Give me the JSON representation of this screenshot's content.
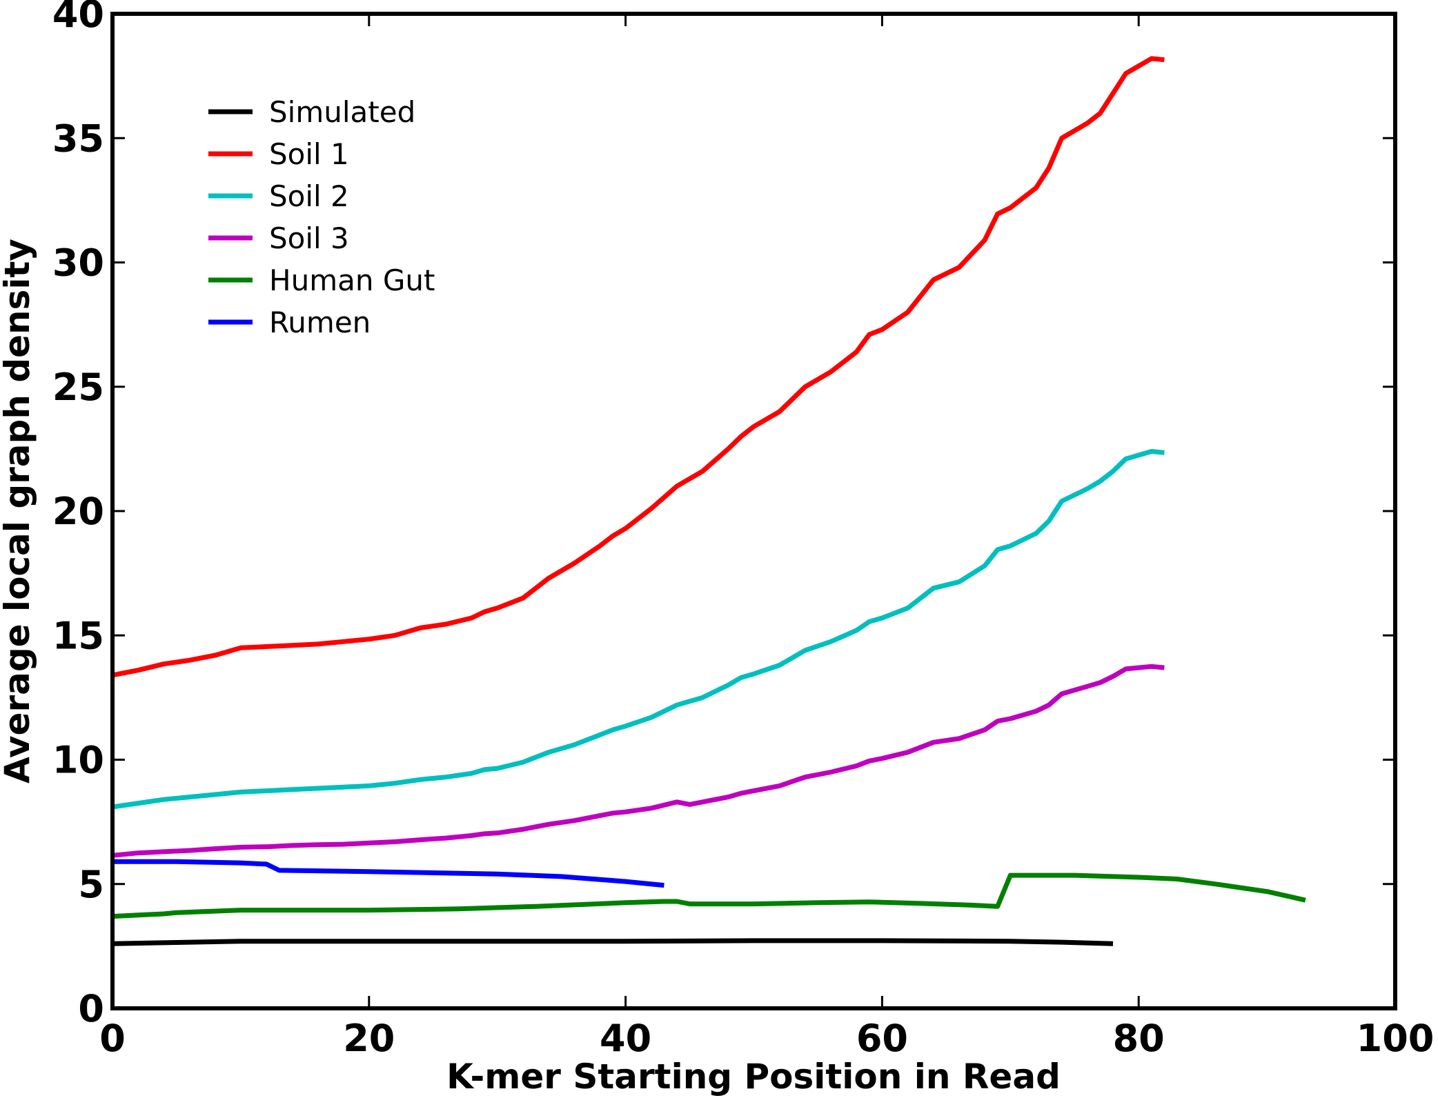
{
  "chart_data": {
    "type": "line",
    "title": "",
    "xlabel": "K-mer Starting Position in Read",
    "ylabel": "Average local graph density",
    "xlim": [
      0,
      100
    ],
    "ylim": [
      0,
      40
    ],
    "xticks": [
      "0",
      "20",
      "40",
      "60",
      "80",
      "100"
    ],
    "yticks": [
      "0",
      "5",
      "10",
      "15",
      "20",
      "25",
      "30",
      "35",
      "40"
    ],
    "legend_position": "top-left",
    "grid": false,
    "series": [
      {
        "name": "Simulated",
        "color": "#000000",
        "x": [
          0,
          5,
          10,
          20,
          30,
          40,
          50,
          60,
          70,
          74,
          78
        ],
        "y": [
          2.6,
          2.65,
          2.7,
          2.7,
          2.7,
          2.7,
          2.72,
          2.72,
          2.7,
          2.66,
          2.6
        ]
      },
      {
        "name": "Soil 1",
        "color": "#ff0000",
        "x": [
          0,
          2,
          4,
          6,
          8,
          10,
          12,
          14,
          16,
          18,
          20,
          22,
          24,
          26,
          28,
          29,
          30,
          32,
          34,
          36,
          38,
          39,
          40,
          42,
          44,
          46,
          48,
          49,
          50,
          52,
          54,
          56,
          58,
          59,
          60,
          62,
          64,
          66,
          68,
          69,
          70,
          72,
          73,
          74,
          76,
          77,
          78,
          79,
          80,
          81,
          82
        ],
        "y": [
          13.4,
          13.6,
          13.85,
          14.0,
          14.2,
          14.5,
          14.55,
          14.6,
          14.65,
          14.75,
          14.85,
          15.0,
          15.3,
          15.45,
          15.7,
          15.95,
          16.1,
          16.5,
          17.3,
          17.9,
          18.6,
          19.0,
          19.3,
          20.1,
          21.0,
          21.6,
          22.5,
          23.0,
          23.4,
          24.0,
          25.0,
          25.6,
          26.4,
          27.1,
          27.3,
          28.0,
          29.3,
          29.8,
          30.9,
          31.95,
          32.2,
          33.0,
          33.8,
          35.0,
          35.6,
          36.0,
          36.8,
          37.6,
          37.9,
          38.2,
          38.15
        ]
      },
      {
        "name": "Soil 2",
        "color": "#00bfbf",
        "x": [
          0,
          2,
          4,
          6,
          8,
          10,
          12,
          14,
          16,
          18,
          20,
          22,
          24,
          26,
          28,
          29,
          30,
          32,
          34,
          36,
          38,
          39,
          40,
          42,
          44,
          46,
          48,
          49,
          50,
          52,
          54,
          56,
          58,
          59,
          60,
          62,
          64,
          66,
          68,
          69,
          70,
          72,
          73,
          74,
          76,
          77,
          78,
          79,
          80,
          81,
          82
        ],
        "y": [
          8.1,
          8.25,
          8.4,
          8.5,
          8.6,
          8.7,
          8.75,
          8.8,
          8.85,
          8.9,
          8.95,
          9.05,
          9.2,
          9.3,
          9.45,
          9.6,
          9.65,
          9.9,
          10.3,
          10.6,
          11.0,
          11.2,
          11.35,
          11.7,
          12.2,
          12.5,
          13.0,
          13.3,
          13.45,
          13.8,
          14.4,
          14.75,
          15.2,
          15.55,
          15.7,
          16.1,
          16.9,
          17.15,
          17.8,
          18.45,
          18.6,
          19.1,
          19.6,
          20.4,
          20.9,
          21.2,
          21.6,
          22.1,
          22.25,
          22.4,
          22.35
        ]
      },
      {
        "name": "Soil 3",
        "color": "#bf00bf",
        "x": [
          0,
          2,
          4,
          6,
          8,
          10,
          12,
          14,
          16,
          18,
          20,
          22,
          24,
          26,
          28,
          29,
          30,
          32,
          34,
          36,
          38,
          39,
          40,
          42,
          44,
          45,
          46,
          48,
          49,
          50,
          52,
          54,
          56,
          58,
          59,
          60,
          62,
          64,
          66,
          68,
          69,
          70,
          72,
          73,
          74,
          76,
          77,
          78,
          79,
          80,
          81,
          82
        ],
        "y": [
          6.15,
          6.25,
          6.3,
          6.35,
          6.42,
          6.48,
          6.5,
          6.55,
          6.58,
          6.6,
          6.65,
          6.7,
          6.78,
          6.85,
          6.95,
          7.02,
          7.05,
          7.2,
          7.4,
          7.55,
          7.75,
          7.85,
          7.9,
          8.05,
          8.3,
          8.2,
          8.3,
          8.5,
          8.65,
          8.75,
          8.95,
          9.3,
          9.5,
          9.75,
          9.95,
          10.05,
          10.3,
          10.7,
          10.85,
          11.2,
          11.55,
          11.65,
          11.95,
          12.2,
          12.65,
          12.95,
          13.1,
          13.35,
          13.65,
          13.7,
          13.75,
          13.7
        ]
      },
      {
        "name": "Human Gut",
        "color": "#008000",
        "x": [
          0,
          2,
          4,
          5,
          10,
          20,
          27,
          33,
          40,
          43,
          44,
          45,
          50,
          55,
          59,
          63,
          67,
          69,
          70,
          75,
          80,
          83,
          86,
          90,
          93
        ],
        "y": [
          3.7,
          3.75,
          3.8,
          3.85,
          3.95,
          3.95,
          4.0,
          4.1,
          4.25,
          4.3,
          4.3,
          4.2,
          4.2,
          4.25,
          4.28,
          4.22,
          4.15,
          4.1,
          5.35,
          5.35,
          5.27,
          5.2,
          5.0,
          4.7,
          4.35
        ]
      },
      {
        "name": "Rumen",
        "color": "#0000ff",
        "x": [
          0,
          5,
          10,
          12,
          13,
          20,
          30,
          35,
          40,
          43
        ],
        "y": [
          5.9,
          5.9,
          5.85,
          5.8,
          5.55,
          5.5,
          5.4,
          5.3,
          5.1,
          4.95
        ]
      }
    ]
  }
}
